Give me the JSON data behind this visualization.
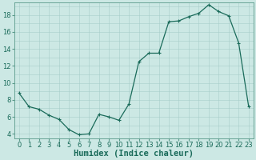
{
  "x": [
    0,
    1,
    2,
    3,
    4,
    5,
    6,
    7,
    8,
    9,
    10,
    11,
    12,
    13,
    14,
    15,
    16,
    17,
    18,
    19,
    20,
    21,
    22,
    23
  ],
  "y": [
    8.8,
    7.2,
    6.9,
    6.2,
    5.7,
    4.5,
    3.9,
    4.0,
    6.3,
    6.0,
    5.6,
    7.5,
    12.5,
    13.5,
    13.5,
    17.2,
    17.3,
    17.8,
    18.2,
    19.2,
    18.4,
    17.9,
    14.7,
    7.2
  ],
  "line_color": "#1a6b5a",
  "marker": "+",
  "marker_size": 3,
  "marker_linewidth": 0.8,
  "linewidth": 0.9,
  "bg_color": "#cce8e4",
  "grid_color": "#a8ceca",
  "grid_major_color": "#c0dcda",
  "xlabel": "Humidex (Indice chaleur)",
  "xlabel_fontsize": 7.5,
  "yticks": [
    4,
    6,
    8,
    10,
    12,
    14,
    16,
    18
  ],
  "xticks": [
    0,
    1,
    2,
    3,
    4,
    5,
    6,
    7,
    8,
    9,
    10,
    11,
    12,
    13,
    14,
    15,
    16,
    17,
    18,
    19,
    20,
    21,
    22,
    23
  ],
  "xlim": [
    -0.5,
    23.5
  ],
  "ylim": [
    3.5,
    19.5
  ],
  "tick_color": "#1a6b5a",
  "tick_fontsize": 6,
  "axis_color": "#5a9a8a"
}
